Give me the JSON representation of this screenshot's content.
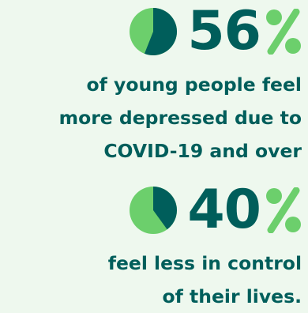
{
  "stat_1": {
    "value": "56",
    "percent": 56,
    "caption_lines": [
      "of young people feel",
      "more depressed due to",
      "COVID-19 and over"
    ]
  },
  "stat_2": {
    "value": "40",
    "percent": 40,
    "caption_lines": [
      "feel less in control",
      "of their lives."
    ]
  },
  "colors": {
    "background": "#eef8ee",
    "primary_teal": "#005e5b",
    "accent_green": "#6ccf6c"
  },
  "icons": {
    "pie": "pie-chart-icon",
    "percent": "percent-sign-icon"
  }
}
